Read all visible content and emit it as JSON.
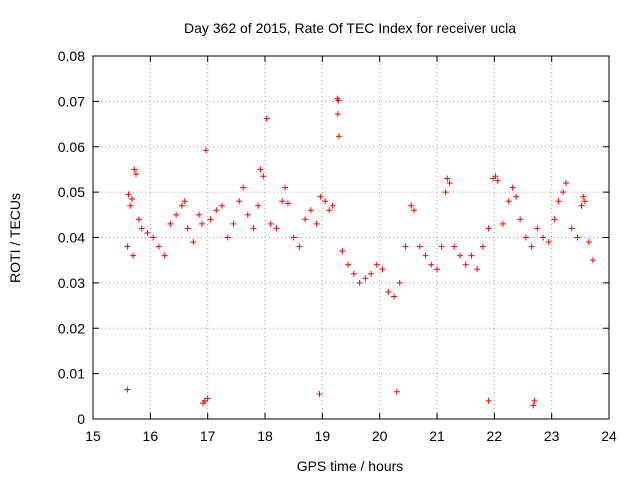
{
  "chart_data": {
    "type": "scatter",
    "title": "Day 362 of 2015, Rate Of TEC Index for receiver ucla",
    "xlabel": "GPS time / hours",
    "ylabel": "ROTI / TECUs",
    "xlim": [
      15,
      24
    ],
    "ylim": [
      0,
      0.08
    ],
    "x_ticks": [
      "15",
      "16",
      "17",
      "18",
      "19",
      "20",
      "21",
      "22",
      "23",
      "24"
    ],
    "y_ticks": [
      "0",
      "0.01",
      "0.02",
      "0.03",
      "0.04",
      "0.05",
      "0.06",
      "0.07",
      "0.08"
    ],
    "grid": true,
    "marker": "+",
    "color": "#ff0000",
    "series": [
      {
        "name": "ROTI",
        "points": [
          [
            15.62,
            0.0495
          ],
          [
            15.68,
            0.0485
          ],
          [
            15.72,
            0.055
          ],
          [
            15.75,
            0.054
          ],
          [
            15.65,
            0.047
          ],
          [
            15.8,
            0.044
          ],
          [
            15.6,
            0.038
          ],
          [
            15.7,
            0.036
          ],
          [
            15.85,
            0.042
          ],
          [
            15.95,
            0.041
          ],
          [
            16.05,
            0.04
          ],
          [
            16.15,
            0.038
          ],
          [
            16.25,
            0.036
          ],
          [
            16.35,
            0.043
          ],
          [
            16.45,
            0.045
          ],
          [
            16.55,
            0.047
          ],
          [
            16.6,
            0.048
          ],
          [
            16.65,
            0.042
          ],
          [
            16.75,
            0.039
          ],
          [
            16.85,
            0.045
          ],
          [
            16.9,
            0.043
          ],
          [
            16.97,
            0.0592
          ],
          [
            17.05,
            0.044
          ],
          [
            17.15,
            0.046
          ],
          [
            17.25,
            0.047
          ],
          [
            17.35,
            0.04
          ],
          [
            17.45,
            0.043
          ],
          [
            17.55,
            0.048
          ],
          [
            17.62,
            0.051
          ],
          [
            17.7,
            0.045
          ],
          [
            17.8,
            0.042
          ],
          [
            17.88,
            0.047
          ],
          [
            17.92,
            0.055
          ],
          [
            17.97,
            0.0535
          ],
          [
            18.03,
            0.0662
          ],
          [
            18.1,
            0.043
          ],
          [
            18.2,
            0.042
          ],
          [
            18.3,
            0.048
          ],
          [
            18.35,
            0.051
          ],
          [
            18.4,
            0.0475
          ],
          [
            18.5,
            0.04
          ],
          [
            18.6,
            0.038
          ],
          [
            18.7,
            0.044
          ],
          [
            18.8,
            0.046
          ],
          [
            18.9,
            0.043
          ],
          [
            18.97,
            0.049
          ],
          [
            19.05,
            0.048
          ],
          [
            19.12,
            0.046
          ],
          [
            19.18,
            0.047
          ],
          [
            19.26,
            0.0706
          ],
          [
            19.28,
            0.0702
          ],
          [
            19.27,
            0.0672
          ],
          [
            19.29,
            0.0623
          ],
          [
            19.35,
            0.037
          ],
          [
            19.45,
            0.034
          ],
          [
            19.55,
            0.032
          ],
          [
            19.65,
            0.03
          ],
          [
            19.75,
            0.031
          ],
          [
            19.85,
            0.032
          ],
          [
            19.95,
            0.034
          ],
          [
            20.05,
            0.033
          ],
          [
            20.15,
            0.028
          ],
          [
            20.25,
            0.027
          ],
          [
            20.35,
            0.03
          ],
          [
            20.45,
            0.038
          ],
          [
            20.55,
            0.047
          ],
          [
            20.6,
            0.046
          ],
          [
            20.7,
            0.038
          ],
          [
            20.8,
            0.036
          ],
          [
            20.9,
            0.034
          ],
          [
            21.0,
            0.033
          ],
          [
            21.08,
            0.038
          ],
          [
            21.15,
            0.05
          ],
          [
            21.18,
            0.053
          ],
          [
            21.22,
            0.052
          ],
          [
            21.3,
            0.038
          ],
          [
            21.4,
            0.036
          ],
          [
            21.5,
            0.034
          ],
          [
            21.6,
            0.036
          ],
          [
            21.7,
            0.033
          ],
          [
            21.8,
            0.038
          ],
          [
            21.9,
            0.042
          ],
          [
            21.98,
            0.053
          ],
          [
            22.02,
            0.0535
          ],
          [
            22.06,
            0.0525
          ],
          [
            22.15,
            0.043
          ],
          [
            22.25,
            0.048
          ],
          [
            22.32,
            0.051
          ],
          [
            22.38,
            0.049
          ],
          [
            22.45,
            0.044
          ],
          [
            22.55,
            0.04
          ],
          [
            22.65,
            0.038
          ],
          [
            22.75,
            0.042
          ],
          [
            22.85,
            0.04
          ],
          [
            22.95,
            0.039
          ],
          [
            23.05,
            0.044
          ],
          [
            23.12,
            0.048
          ],
          [
            23.2,
            0.05
          ],
          [
            23.25,
            0.052
          ],
          [
            23.35,
            0.042
          ],
          [
            23.45,
            0.04
          ],
          [
            23.52,
            0.047
          ],
          [
            23.55,
            0.049
          ],
          [
            23.58,
            0.048
          ],
          [
            23.65,
            0.039
          ],
          [
            23.72,
            0.035
          ],
          [
            16.92,
            0.0035
          ],
          [
            16.95,
            0.004
          ],
          [
            17.0,
            0.0045
          ],
          [
            22.68,
            0.003
          ],
          [
            22.7,
            0.004
          ],
          [
            15.6,
            0.0065
          ],
          [
            21.9,
            0.004
          ],
          [
            18.95,
            0.0055
          ],
          [
            20.3,
            0.006
          ]
        ]
      }
    ]
  }
}
